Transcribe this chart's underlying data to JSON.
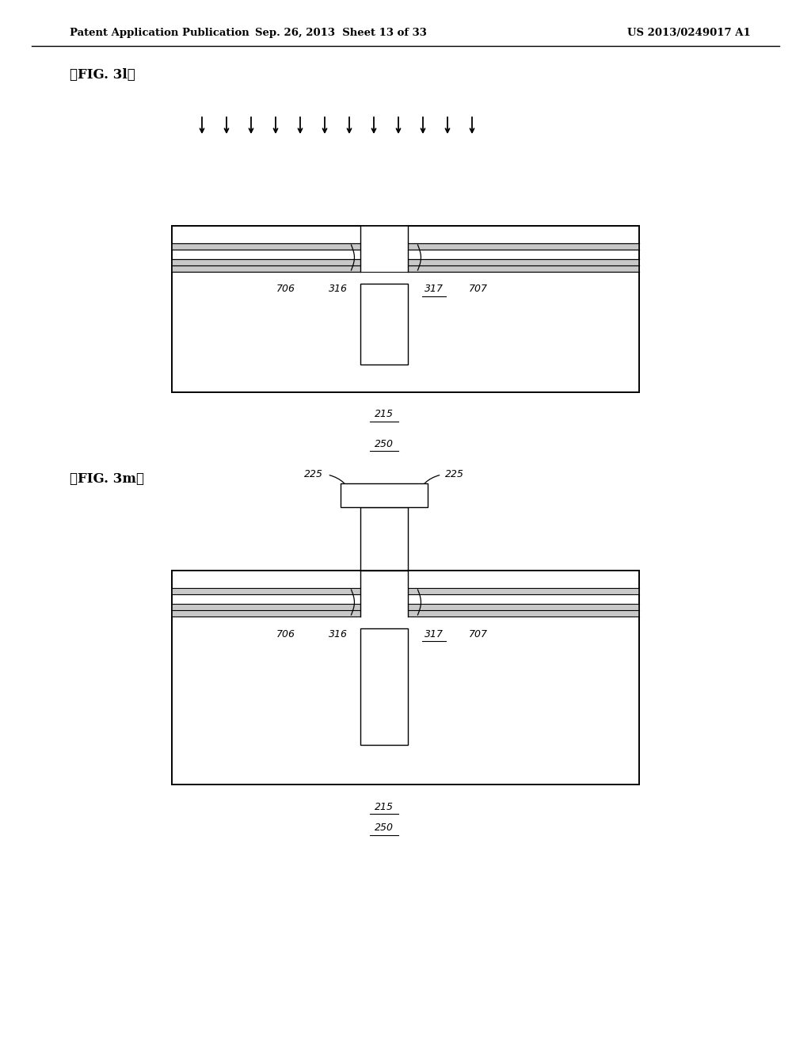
{
  "bg_color": "#ffffff",
  "header_text": "Patent Application Publication",
  "header_date": "Sep. 26, 2013  Sheet 13 of 33",
  "header_patent": "US 2013/0249017 A1",
  "fig1_label": "【FIG. 3l】",
  "fig2_label": "【FIG. 3m】",
  "gray_color": "#c8c8c8",
  "line_color": "#000000"
}
